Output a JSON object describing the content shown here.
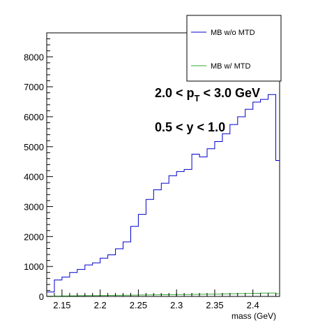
{
  "chart_data": {
    "type": "histogram",
    "title": "",
    "xlabel": "mass (GeV)",
    "ylabel": "",
    "xlim": [
      2.13,
      2.435
    ],
    "ylim": [
      0,
      8800
    ],
    "xticks": [
      2.15,
      2.2,
      2.25,
      2.3,
      2.35,
      2.4
    ],
    "xtick_labels": [
      "2.15",
      "2.2",
      "2.25",
      "2.3",
      "2.35",
      "2.4"
    ],
    "yticks": [
      0,
      1000,
      2000,
      3000,
      4000,
      5000,
      6000,
      7000,
      8000
    ],
    "ytick_labels": [
      "0",
      "1000",
      "2000",
      "3000",
      "4000",
      "5000",
      "6000",
      "7000",
      "8000"
    ],
    "bin_edges": [
      2.13,
      2.14,
      2.15,
      2.16,
      2.17,
      2.18,
      2.19,
      2.2,
      2.21,
      2.22,
      2.23,
      2.24,
      2.25,
      2.26,
      2.27,
      2.28,
      2.29,
      2.3,
      2.31,
      2.32,
      2.33,
      2.34,
      2.35,
      2.36,
      2.37,
      2.38,
      2.39,
      2.4,
      2.41,
      2.42,
      2.43,
      2.435
    ],
    "series": [
      {
        "name": "MB w/o MTD",
        "color": "#0000cc",
        "values": [
          150,
          550,
          650,
          800,
          900,
          1050,
          1120,
          1280,
          1390,
          1590,
          1820,
          2340,
          2740,
          3240,
          3560,
          3780,
          4030,
          4170,
          4240,
          4750,
          4660,
          4930,
          5170,
          5430,
          5740,
          6000,
          6250,
          6490,
          6580,
          6740,
          4540
        ]
      },
      {
        "name": "MB w/ MTD",
        "color": "#33aa33",
        "values": [
          10,
          15,
          18,
          22,
          25,
          28,
          30,
          32,
          35,
          38,
          40,
          45,
          50,
          52,
          55,
          58,
          60,
          62,
          65,
          70,
          72,
          75,
          80,
          85,
          90,
          95,
          100,
          105,
          110,
          115,
          90
        ]
      }
    ],
    "legend": {
      "placement": "top-right",
      "entries": [
        "MB w/o MTD",
        "MB w/ MTD"
      ]
    },
    "annotations": [
      {
        "text_prefix": "2.0 < p",
        "subscript": "T",
        "text_suffix": " < 3.0 GeV"
      },
      {
        "text": "0.5 < y < 1.0"
      }
    ]
  }
}
